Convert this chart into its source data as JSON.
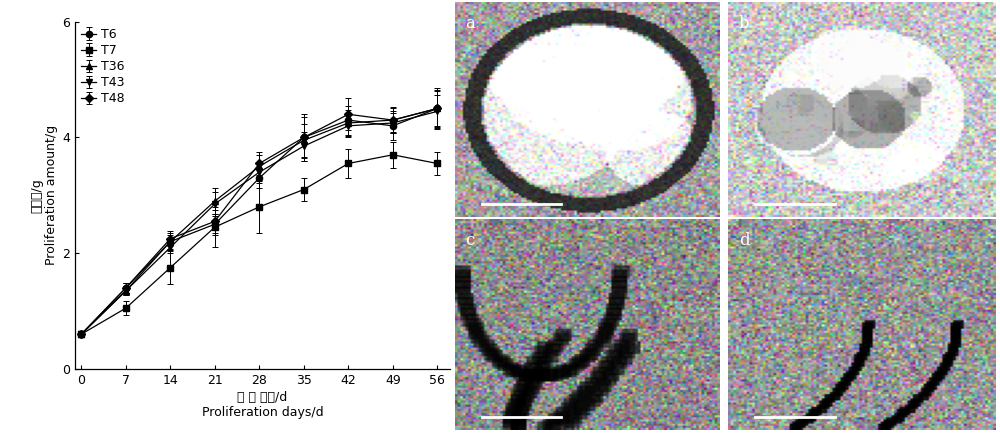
{
  "x": [
    0,
    7,
    14,
    21,
    28,
    35,
    42,
    49,
    56
  ],
  "series": {
    "T6": {
      "y": [
        0.6,
        1.4,
        2.2,
        2.5,
        3.3,
        4.0,
        4.3,
        4.2,
        4.5
      ],
      "yerr": [
        0.0,
        0.08,
        0.15,
        0.18,
        0.18,
        0.4,
        0.25,
        0.25,
        0.35
      ],
      "marker": "o"
    },
    "T7": {
      "y": [
        0.6,
        1.05,
        1.75,
        2.45,
        2.8,
        3.1,
        3.55,
        3.7,
        3.55
      ],
      "yerr": [
        0.0,
        0.12,
        0.28,
        0.35,
        0.45,
        0.2,
        0.25,
        0.22,
        0.2
      ],
      "marker": "s"
    },
    "T36": {
      "y": [
        0.6,
        1.35,
        2.2,
        2.9,
        3.5,
        3.95,
        4.25,
        4.3,
        4.5
      ],
      "yerr": [
        0.0,
        0.08,
        0.12,
        0.22,
        0.2,
        0.28,
        0.22,
        0.2,
        0.3
      ],
      "marker": "^"
    },
    "T43": {
      "y": [
        0.6,
        1.35,
        2.1,
        2.85,
        3.4,
        3.85,
        4.2,
        4.25,
        4.45
      ],
      "yerr": [
        0.0,
        0.08,
        0.1,
        0.2,
        0.18,
        0.25,
        0.2,
        0.18,
        0.28
      ],
      "marker": "v"
    },
    "T48": {
      "y": [
        0.6,
        1.4,
        2.25,
        2.55,
        3.55,
        4.0,
        4.4,
        4.3,
        4.5
      ],
      "yerr": [
        0.0,
        0.08,
        0.13,
        0.2,
        0.2,
        0.35,
        0.28,
        0.22,
        0.32
      ],
      "marker": "D"
    }
  },
  "series_order": [
    "T6",
    "T7",
    "T36",
    "T43",
    "T48"
  ],
  "xlabel_cn": "增 殖 天数/d",
  "xlabel_en": "Proliferation days/d",
  "ylabel_cn": "增殖量/g",
  "ylabel_en": "Proliferation amount/g",
  "ylim": [
    0,
    6
  ],
  "yticks": [
    0,
    2,
    4,
    6
  ],
  "xlim": [
    -1,
    58
  ],
  "xticks": [
    0,
    7,
    14,
    21,
    28,
    35,
    42,
    49,
    56
  ],
  "line_color": "#000000",
  "background_color": "#ffffff",
  "legend_fontsize": 9,
  "axis_fontsize": 9,
  "tick_fontsize": 9,
  "figsize": [
    10.0,
    4.34
  ],
  "dpi": 100,
  "photo_panel_labels": [
    "a",
    "b",
    "c",
    "d"
  ],
  "photo_bg_colors": [
    "#888888",
    "#999999",
    "#777777",
    "#888888"
  ]
}
